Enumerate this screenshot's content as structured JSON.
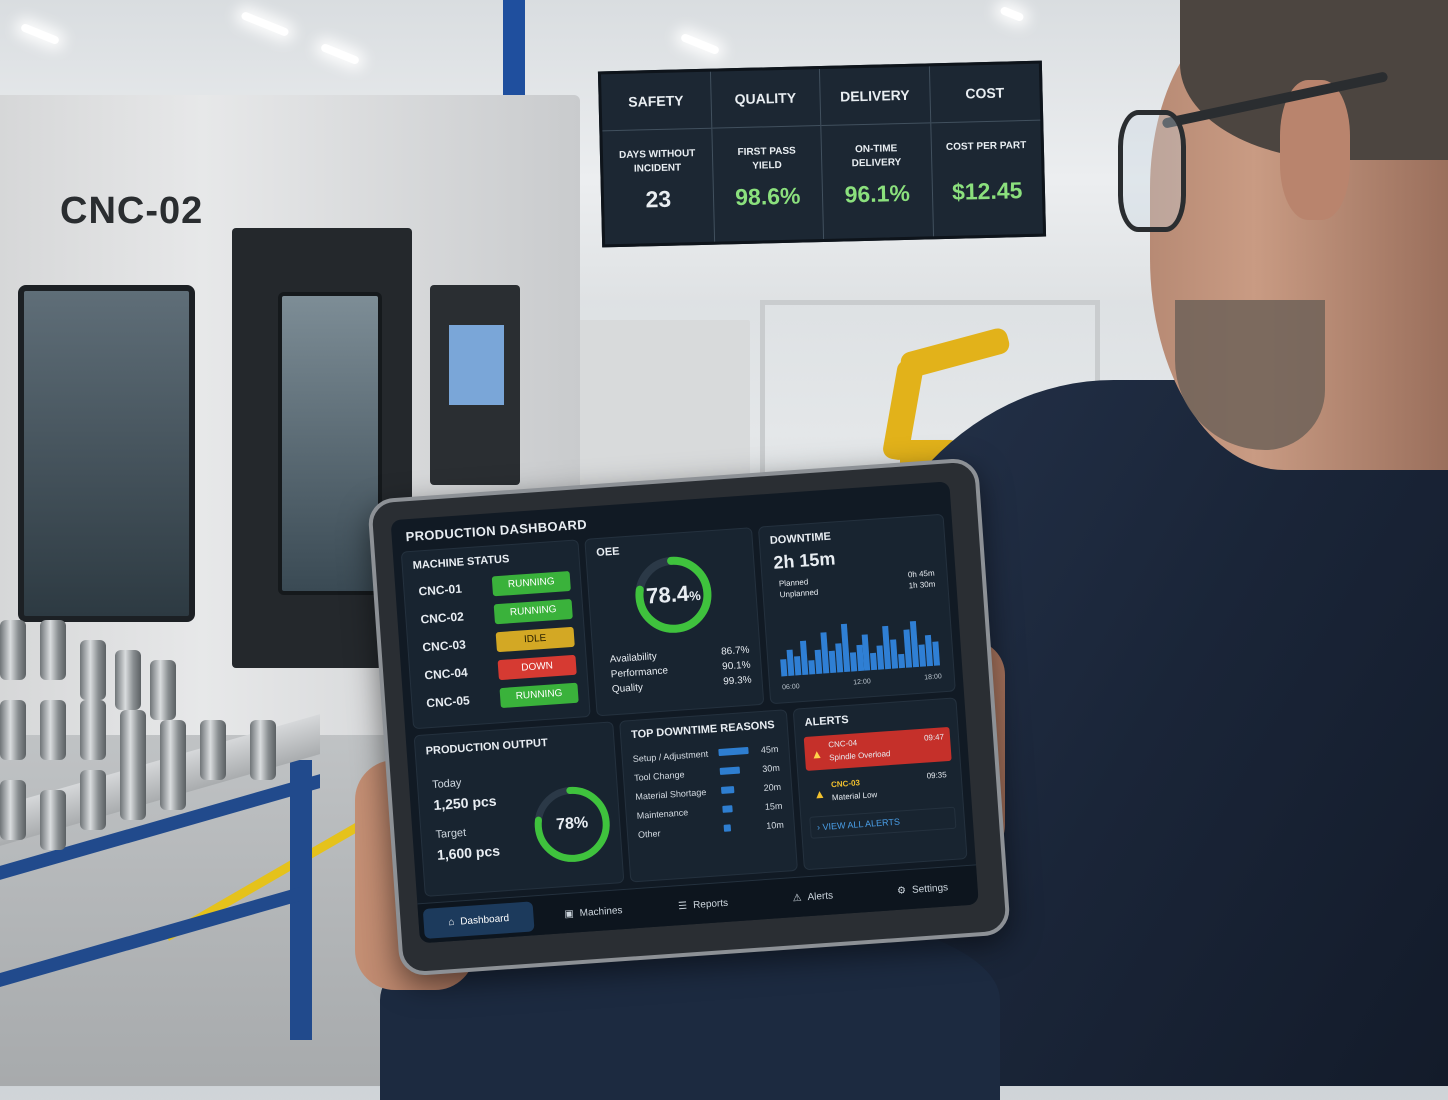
{
  "machine_label": "CNC-02",
  "kpi_board": {
    "columns": [
      {
        "heading": "SAFETY",
        "metric": "DAYS WITHOUT INCIDENT",
        "value": "23"
      },
      {
        "heading": "QUALITY",
        "metric": "FIRST PASS YIELD",
        "value": "98.6%"
      },
      {
        "heading": "DELIVERY",
        "metric": "ON-TIME DELIVERY",
        "value": "96.1%"
      },
      {
        "heading": "COST",
        "metric": "COST PER PART",
        "value": "$12.45"
      }
    ]
  },
  "tablet": {
    "title": "PRODUCTION DASHBOARD",
    "machine_status": {
      "title": "MACHINE STATUS",
      "machines": [
        {
          "name": "CNC-01",
          "status": "RUNNING",
          "color": "#3ab23b"
        },
        {
          "name": "CNC-02",
          "status": "RUNNING",
          "color": "#3ab23b"
        },
        {
          "name": "CNC-03",
          "status": "IDLE",
          "color": "#d3a824"
        },
        {
          "name": "CNC-04",
          "status": "DOWN",
          "color": "#d63a32"
        },
        {
          "name": "CNC-05",
          "status": "RUNNING",
          "color": "#3ab23b"
        }
      ]
    },
    "oee": {
      "title": "OEE",
      "value": "78.4",
      "unit": "%",
      "fraction": 0.784,
      "metrics": [
        {
          "label": "Availability",
          "value": "86.7%"
        },
        {
          "label": "Performance",
          "value": "90.1%"
        },
        {
          "label": "Quality",
          "value": "99.3%"
        }
      ]
    },
    "downtime": {
      "title": "DOWNTIME",
      "total": "2h 15m",
      "planned_label": "Planned",
      "planned_value": "0h 45m",
      "unplanned_label": "Unplanned",
      "unplanned_value": "1h 30m",
      "axis_labels": [
        "06:00",
        "12:00",
        "18:00"
      ],
      "bar_levels": [
        0.35,
        0.55,
        0.4,
        0.7,
        0.3,
        0.5,
        0.85,
        0.45,
        0.6,
        1.0,
        0.4,
        0.55,
        0.75,
        0.35,
        0.5,
        0.9,
        0.6,
        0.3,
        0.8,
        0.95,
        0.45,
        0.65,
        0.5
      ]
    },
    "production_output": {
      "title": "PRODUCTION OUTPUT",
      "today_label": "Today",
      "today_value": "1,250 pcs",
      "target_label": "Target",
      "target_value": "1,600 pcs",
      "percent": "78%",
      "fraction": 0.78
    },
    "top_downtime": {
      "title": "TOP DOWNTIME REASONS",
      "reasons": [
        {
          "label": "Setup / Adjustment",
          "value": "45m",
          "fraction": 1.0
        },
        {
          "label": "Tool Change",
          "value": "30m",
          "fraction": 0.67
        },
        {
          "label": "Material Shortage",
          "value": "20m",
          "fraction": 0.44
        },
        {
          "label": "Maintenance",
          "value": "15m",
          "fraction": 0.33
        },
        {
          "label": "Other",
          "value": "10m",
          "fraction": 0.22
        }
      ]
    },
    "alerts": {
      "title": "ALERTS",
      "items": [
        {
          "machine": "CNC-04",
          "time": "09:47",
          "message": "Spindle Overload",
          "severity": "critical"
        },
        {
          "machine": "CNC-03",
          "time": "09:35",
          "message": "Material Low",
          "severity": "warning"
        }
      ],
      "view_all": "VIEW ALL ALERTS"
    },
    "nav": [
      {
        "label": "Dashboard",
        "icon": "home-icon",
        "active": true
      },
      {
        "label": "Machines",
        "icon": "machines-icon",
        "active": false
      },
      {
        "label": "Reports",
        "icon": "reports-icon",
        "active": false
      },
      {
        "label": "Alerts",
        "icon": "alert-icon",
        "active": false
      },
      {
        "label": "Settings",
        "icon": "gear-icon",
        "active": false
      }
    ]
  }
}
